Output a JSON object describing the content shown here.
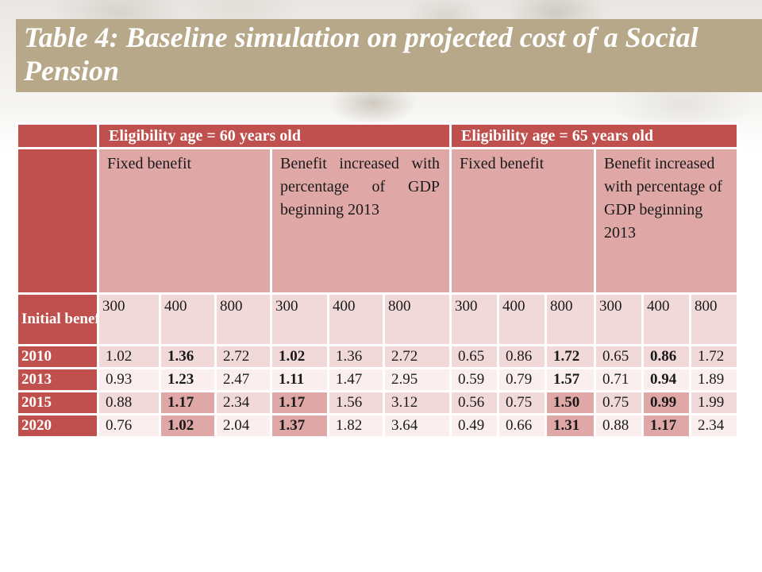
{
  "title": "Table 4: Baseline simulation on projected cost of a Social Pension",
  "table": {
    "group_headers": [
      "Eligibility age = 60 years old",
      "Eligibility age = 65 years old"
    ],
    "sub_headers": [
      "Fixed benefit",
      "Benefit increased with percentage of GDP beginning 2013",
      "Fixed benefit",
      "Benefit increased with percentage of GDP beginning 2013"
    ],
    "benefits_label": "Initial benefits",
    "benefit_levels": [
      "300",
      "400",
      "800",
      "300",
      "400",
      "800",
      "300",
      "400",
      "800",
      "300",
      "400",
      "800"
    ],
    "rows": [
      {
        "year": "2010",
        "values": [
          "1.02",
          "1.36",
          "2.72",
          "1.02",
          "1.36",
          "2.72",
          "0.65",
          "0.86",
          "1.72",
          "0.65",
          "0.86",
          "1.72"
        ],
        "bold": [
          false,
          true,
          false,
          true,
          false,
          false,
          false,
          false,
          true,
          false,
          true,
          false
        ]
      },
      {
        "year": "2013",
        "values": [
          "0.93",
          "1.23",
          "2.47",
          "1.11",
          "1.47",
          "2.95",
          "0.59",
          "0.79",
          "1.57",
          "0.71",
          "0.94",
          "1.89"
        ],
        "bold": [
          false,
          true,
          false,
          true,
          false,
          false,
          false,
          false,
          true,
          false,
          true,
          false
        ]
      },
      {
        "year": "2015",
        "values": [
          "0.88",
          "1.17",
          "2.34",
          "1.17",
          "1.56",
          "3.12",
          "0.56",
          "0.75",
          "1.50",
          "0.75",
          "0.99",
          "1.99"
        ],
        "bold": [
          false,
          true,
          false,
          true,
          false,
          false,
          false,
          false,
          true,
          false,
          true,
          false
        ]
      },
      {
        "year": "2020",
        "values": [
          "0.76",
          "1.02",
          "2.04",
          "1.37",
          "1.82",
          "3.64",
          "0.49",
          "0.66",
          "1.31",
          "0.88",
          "1.17",
          "2.34"
        ],
        "bold": [
          false,
          true,
          false,
          true,
          false,
          false,
          false,
          false,
          true,
          false,
          true,
          false
        ]
      }
    ]
  },
  "colors": {
    "title_band": "#b6a888",
    "header_red": "#c0504d",
    "cell_pink": "#dfa7a6",
    "cell_light": "#f2d9d9"
  }
}
